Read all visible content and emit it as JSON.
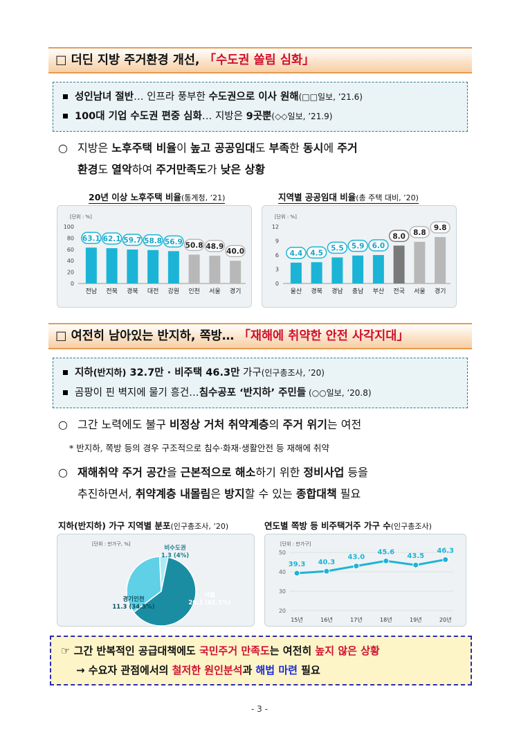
{
  "section1": {
    "checkbox": "□",
    "title_a": "더딘 지방 주거환경 개선, ",
    "title_b": "「수도권 쏠림 심화」"
  },
  "news1": [
    {
      "bullet": "▪",
      "b1": "성인남녀 절반",
      "t1": "… 인프라 풍부한 ",
      "b2": "수도권으로 이사 원해",
      "src": "(□□일보, ’21.6)"
    },
    {
      "bullet": "▪",
      "b1": "100대 기업 수도권 편중 심화",
      "t1": "… 지방은 ",
      "b2": "9곳뿐",
      "src": "(◇◇일보, ’21.9)"
    }
  ],
  "para1": {
    "marker": "○",
    "line1": [
      {
        "t": "지방은 ",
        "b": false
      },
      {
        "t": "노후주택 비율",
        "b": true
      },
      {
        "t": "이 ",
        "b": false
      },
      {
        "t": "높고 공공임대",
        "b": true
      },
      {
        "t": "도 ",
        "b": false
      },
      {
        "t": "부족",
        "b": true
      },
      {
        "t": "한 ",
        "b": false
      },
      {
        "t": "동시",
        "b": true
      },
      {
        "t": "에 ",
        "b": false
      },
      {
        "t": "주거",
        "b": true
      }
    ],
    "line2": [
      {
        "t": "환경",
        "b": true
      },
      {
        "t": "도 ",
        "b": false
      },
      {
        "t": "열악",
        "b": true
      },
      {
        "t": "하여 ",
        "b": false
      },
      {
        "t": "주거만족도",
        "b": true
      },
      {
        "t": "가 ",
        "b": false
      },
      {
        "t": "낮은 상황",
        "b": true
      }
    ]
  },
  "chart_titles": {
    "c1": "20년 이상 노후주택 비율",
    "c1_src": "(통계청, ’21)",
    "c2": "지역별 공공임대 비율",
    "c2_src": "(총 주택 대비, ’20)",
    "c3": "지하(반지하) 가구 지역별 분포",
    "c3_src": "(인구총조사, ’20)",
    "c4": "연도별 쪽방 등 비주택거주 가구 수",
    "c4_src": "(인구총조사)"
  },
  "chart_data": [
    {
      "type": "bar",
      "title": "20년 이상 노후주택 비율",
      "unit": "[단위 : %]",
      "categories": [
        "전남",
        "전북",
        "경북",
        "대전",
        "강원",
        "인천",
        "서울",
        "경기"
      ],
      "values": [
        63.1,
        62.1,
        59.7,
        58.8,
        56.9,
        50.8,
        48.9,
        40.0
      ],
      "value_labels": [
        "63.1",
        "62.1",
        "59.7",
        "58.8",
        "56.9",
        "50.8",
        "48.9",
        "40.0"
      ],
      "yticks": [
        "100",
        "80",
        "60",
        "40",
        "20",
        "0"
      ],
      "ylim": [
        0,
        100
      ],
      "colors": {
        "highlight": "#1cb4d6",
        "other": "#b8b8b8",
        "label": "#1aa6c9"
      }
    },
    {
      "type": "bar",
      "title": "지역별 공공임대 비율",
      "unit": "[단위 : %]",
      "categories": [
        "울산",
        "경북",
        "경남",
        "충남",
        "부산",
        "전국",
        "서울",
        "경기"
      ],
      "values": [
        4.4,
        4.5,
        5.5,
        5.9,
        6.0,
        8.0,
        8.8,
        9.8
      ],
      "value_labels": [
        "4.4",
        "4.5",
        "5.5",
        "5.9",
        "6.0",
        "8.0",
        "8.8",
        "9.8"
      ],
      "yticks": [
        "12",
        "9",
        "6",
        "3",
        "0"
      ],
      "ylim": [
        0,
        12
      ],
      "colors": {
        "highlight": "#1cb4d6",
        "national": "#7a7a7a",
        "other": "#b8b8b8"
      }
    },
    {
      "type": "pie",
      "title": "지하(반지하) 가구 지역별 분포",
      "unit": "[단위 : 만가구, %]",
      "slices": [
        {
          "name": "서울",
          "value": 20.1,
          "pct": 61.5,
          "label1": "서울",
          "label2": "20.1 (61.5%)",
          "color": "#1b8da3"
        },
        {
          "name": "경기인천",
          "value": 11.3,
          "pct": 34.5,
          "label1": "경기인천",
          "label2": "11.3 (34.5%)",
          "color": "#5fd0e6"
        },
        {
          "name": "비수도권",
          "value": 1.3,
          "pct": 4,
          "label1": "비수도권",
          "label2": "1.3 (4%)",
          "color": "#a8ecf6"
        }
      ]
    },
    {
      "type": "line",
      "title": "연도별 쪽방 등 비주택거주 가구 수",
      "unit": "[단위 : 만가구]",
      "x": [
        "15년",
        "16년",
        "17년",
        "18년",
        "19년",
        "20년"
      ],
      "values": [
        39.3,
        40.3,
        43.0,
        45.6,
        43.5,
        46.3
      ],
      "value_labels": [
        "39.3",
        "40.3",
        "43.0",
        "45.6",
        "43.5",
        "46.3"
      ],
      "yticks": [
        "50",
        "40",
        "30",
        "20"
      ],
      "ylim": [
        20,
        50
      ],
      "color": "#1cb4d6"
    }
  ],
  "section2": {
    "checkbox": "□",
    "title_a": "여전히 남아있는 반지하, 쪽방… ",
    "title_b": "「재해에 취약한 안전 사각지대」"
  },
  "news2": [
    {
      "bullet": "▪",
      "b1": "지하",
      "small": "(반지하)",
      "b2": " 32.7만 · 비주택 46.3만",
      "t1": " 가구",
      "src": "(인구총조사, ’20)"
    },
    {
      "bullet": "▪",
      "t0": "곰팡이 핀 벽지에 물기 흥건…",
      "b1": "침수공포 ‘반지하’ 주민들",
      "src": " (○○일보, ’20.8)"
    }
  ],
  "para2": {
    "marker": "○",
    "line1": [
      {
        "t": "그간 노력에도 불구 ",
        "b": false
      },
      {
        "t": "비정상 거처 취약계층",
        "b": true
      },
      {
        "t": "의 ",
        "b": false
      },
      {
        "t": "주거 위기",
        "b": true
      },
      {
        "t": "는 여전",
        "b": false
      }
    ]
  },
  "note": "* 반지하, 쪽방 등의 경우 구조적으로 침수·화재·생활안전 등 재해에 취약",
  "para3": {
    "marker": "○",
    "line1": [
      {
        "t": "재해취약 주거 공간",
        "b": true
      },
      {
        "t": "을 ",
        "b": false
      },
      {
        "t": "근본적으로 해소",
        "b": true
      },
      {
        "t": "하기 위한 ",
        "b": false
      },
      {
        "t": "정비사업",
        "b": true
      },
      {
        "t": " 등을",
        "b": false
      }
    ],
    "line2": [
      {
        "t": "추진하면서, ",
        "b": false
      },
      {
        "t": "취약계층 내몰림",
        "b": true
      },
      {
        "t": "은 ",
        "b": false
      },
      {
        "t": "방지",
        "b": true
      },
      {
        "t": "할 수 있는 ",
        "b": false
      },
      {
        "t": "종합대책",
        "b": true
      },
      {
        "t": " 필요",
        "b": false
      }
    ]
  },
  "bottom": {
    "l1": [
      {
        "t": "☞ 그간 반복적인 공급대책에도 ",
        "c": ""
      },
      {
        "t": "국민주거 만족도",
        "c": "red"
      },
      {
        "t": "는 여전히 ",
        "c": ""
      },
      {
        "t": "높지 않은 상황",
        "c": "red"
      }
    ],
    "l2": [
      {
        "t": "→ 수요자 관점에서의 ",
        "c": ""
      },
      {
        "t": "철저한 원인분석",
        "c": "red"
      },
      {
        "t": "과 ",
        "c": ""
      },
      {
        "t": "해법 마련",
        "c": "blue"
      },
      {
        "t": " 필요",
        "c": ""
      }
    ]
  },
  "page_number": "- 3 -"
}
